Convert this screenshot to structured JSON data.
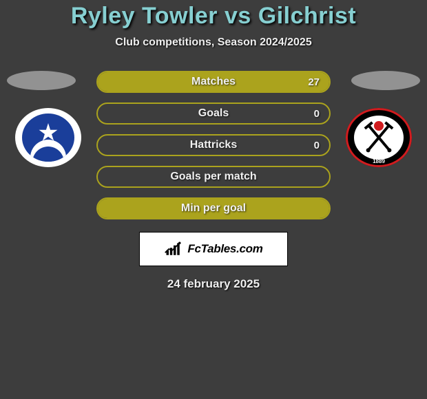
{
  "header": {
    "title": "Ryley Towler vs Gilchrist",
    "subtitle": "Club competitions, Season 2024/2025"
  },
  "colors": {
    "background": "#3d3d3d",
    "title_color": "#86cfd1",
    "bar_border": "#aba31d",
    "bar_fill": "#aba31d",
    "text": "#f0f0f0"
  },
  "left_club": {
    "name": "Portsmouth",
    "badge_bg": "#ffffff",
    "badge_inner": "#1a3e9a"
  },
  "right_club": {
    "name": "Sheffield United",
    "badge_bg": "#000000",
    "badge_ring": "#d01c1f",
    "year": "1889"
  },
  "stats": [
    {
      "label": "Matches",
      "left_val": "",
      "right_val": "27",
      "left_fill_pct": 0,
      "right_fill_pct": 100,
      "full": true
    },
    {
      "label": "Goals",
      "left_val": "",
      "right_val": "0",
      "left_fill_pct": 0,
      "right_fill_pct": 0,
      "full": false
    },
    {
      "label": "Hattricks",
      "left_val": "",
      "right_val": "0",
      "left_fill_pct": 0,
      "right_fill_pct": 0,
      "full": false
    },
    {
      "label": "Goals per match",
      "left_val": "",
      "right_val": "",
      "left_fill_pct": 0,
      "right_fill_pct": 0,
      "full": false
    },
    {
      "label": "Min per goal",
      "left_val": "",
      "right_val": "",
      "left_fill_pct": 0,
      "right_fill_pct": 100,
      "full": true
    }
  ],
  "brand": {
    "name": "FcTables.com"
  },
  "date": "24 february 2025"
}
